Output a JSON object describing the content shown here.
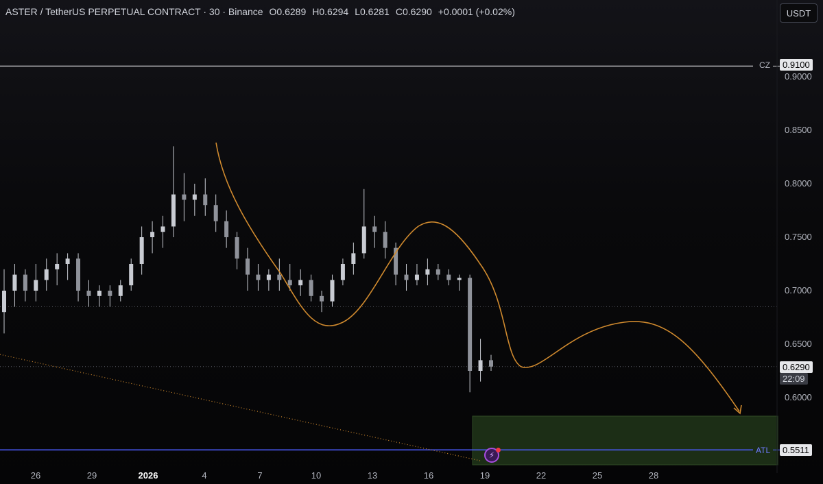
{
  "header": {
    "symbol_title": "ASTER / TetherUS PERPETUAL CONTRACT · 30 · Binance",
    "open_label": "O",
    "open": "0.6289",
    "high_label": "H",
    "high": "0.6294",
    "low_label": "L",
    "low": "0.6281",
    "close_label": "C",
    "close": "0.6290",
    "change": "+0.0001 (+0.02%)",
    "unit_button": "USDT"
  },
  "colors": {
    "candle": "#c9ccd3",
    "orange_path": "#d08a2e",
    "blue_line": "#4d5cff",
    "zone_fill": "#1c2e16",
    "grid_dotted": "#5a5d66"
  },
  "levels": {
    "cz_label": "CZ",
    "cz_price": "0.9100",
    "atl_label": "ATL",
    "atl_price": "0.5511",
    "last_price": "0.6290",
    "countdown": "22:09"
  },
  "chart_data": {
    "type": "line",
    "title": "ASTER / TetherUS PERPETUAL CONTRACT · 30 · Binance",
    "xlabel": "",
    "ylabel": "",
    "x_ticks": [
      "26",
      "29",
      "2026",
      "4",
      "7",
      "10",
      "13",
      "16",
      "19",
      "22",
      "25",
      "28"
    ],
    "y_ticks": [
      "0.9000",
      "0.8500",
      "0.8000",
      "0.7500",
      "0.7000",
      "0.6500",
      "0.6000"
    ],
    "ylim": [
      0.53,
      0.935
    ],
    "grid": false,
    "horizontal_lines": [
      {
        "label": "CZ",
        "value": 0.91
      },
      {
        "label": "ATL",
        "value": 0.5511
      },
      {
        "label": "",
        "value": 0.685
      },
      {
        "label": "",
        "value": 0.629
      }
    ],
    "series": [
      {
        "values": [
          [
            0.68,
            0.72,
            0.66,
            0.7
          ],
          [
            0.7,
            0.725,
            0.685,
            0.715
          ],
          [
            0.715,
            0.72,
            0.69,
            0.7
          ],
          [
            0.7,
            0.725,
            0.69,
            0.71
          ],
          [
            0.71,
            0.73,
            0.7,
            0.72
          ],
          [
            0.72,
            0.735,
            0.705,
            0.725
          ],
          [
            0.725,
            0.735,
            0.71,
            0.73
          ],
          [
            0.73,
            0.735,
            0.69,
            0.7
          ],
          [
            0.7,
            0.71,
            0.685,
            0.695
          ],
          [
            0.695,
            0.705,
            0.685,
            0.7
          ],
          [
            0.7,
            0.705,
            0.685,
            0.695
          ],
          [
            0.695,
            0.71,
            0.69,
            0.705
          ],
          [
            0.705,
            0.73,
            0.7,
            0.725
          ],
          [
            0.725,
            0.76,
            0.715,
            0.75
          ],
          [
            0.75,
            0.765,
            0.735,
            0.755
          ],
          [
            0.755,
            0.77,
            0.74,
            0.76
          ],
          [
            0.76,
            0.835,
            0.75,
            0.79
          ],
          [
            0.79,
            0.81,
            0.765,
            0.785
          ],
          [
            0.785,
            0.8,
            0.77,
            0.79
          ],
          [
            0.79,
            0.805,
            0.77,
            0.78
          ],
          [
            0.78,
            0.79,
            0.755,
            0.765
          ],
          [
            0.765,
            0.775,
            0.74,
            0.75
          ],
          [
            0.75,
            0.755,
            0.72,
            0.73
          ],
          [
            0.73,
            0.74,
            0.7,
            0.715
          ],
          [
            0.715,
            0.725,
            0.7,
            0.71
          ],
          [
            0.71,
            0.72,
            0.7,
            0.715
          ],
          [
            0.715,
            0.73,
            0.7,
            0.71
          ],
          [
            0.71,
            0.725,
            0.7,
            0.705
          ],
          [
            0.705,
            0.72,
            0.695,
            0.71
          ],
          [
            0.71,
            0.715,
            0.69,
            0.695
          ],
          [
            0.695,
            0.7,
            0.68,
            0.69
          ],
          [
            0.69,
            0.715,
            0.685,
            0.71
          ],
          [
            0.71,
            0.73,
            0.705,
            0.725
          ],
          [
            0.725,
            0.745,
            0.715,
            0.735
          ],
          [
            0.735,
            0.795,
            0.73,
            0.76
          ],
          [
            0.76,
            0.77,
            0.74,
            0.755
          ],
          [
            0.755,
            0.765,
            0.73,
            0.74
          ],
          [
            0.74,
            0.745,
            0.705,
            0.715
          ],
          [
            0.715,
            0.725,
            0.7,
            0.71
          ],
          [
            0.71,
            0.725,
            0.705,
            0.715
          ],
          [
            0.715,
            0.73,
            0.705,
            0.72
          ],
          [
            0.72,
            0.725,
            0.71,
            0.715
          ],
          [
            0.715,
            0.72,
            0.705,
            0.71
          ],
          [
            0.71,
            0.715,
            0.7,
            0.712
          ],
          [
            0.712,
            0.715,
            0.605,
            0.625
          ],
          [
            0.625,
            0.655,
            0.615,
            0.635
          ],
          [
            0.635,
            0.64,
            0.625,
            0.629
          ]
        ]
      }
    ]
  }
}
